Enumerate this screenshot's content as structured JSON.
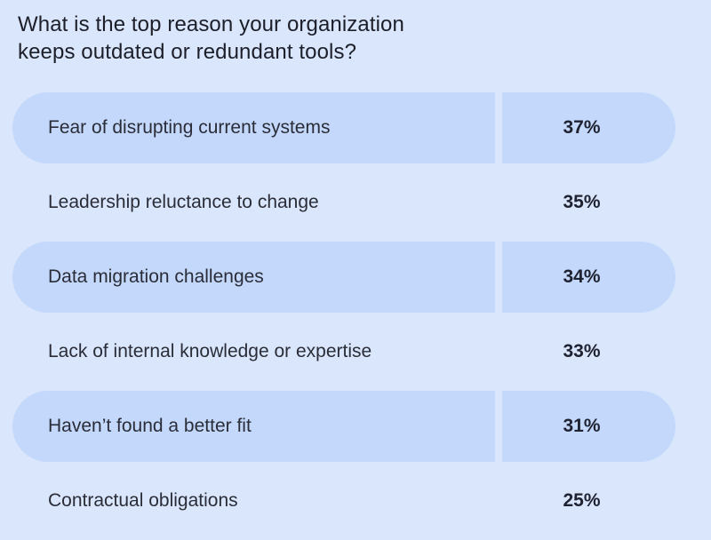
{
  "chart_data": {
    "type": "table",
    "title": "What is the top reason your organization keeps outdated or redundant tools?",
    "title_lines": [
      "What is the top reason your organization",
      "keeps outdated or redundant tools?"
    ],
    "categories": [
      "Fear of disrupting current systems",
      "Leadership reluctance to change",
      "Data migration challenges",
      "Lack of internal knowledge or expertise",
      "Haven’t found a better fit",
      "Contractual obligations"
    ],
    "values": [
      37,
      35,
      34,
      33,
      31,
      25
    ],
    "value_labels": [
      "37%",
      "35%",
      "34%",
      "33%",
      "31%",
      "25%"
    ],
    "unit": "%",
    "colors": {
      "background": "#d9e6fb",
      "row_shade": "#c3d8fb",
      "text": "#1f2230"
    }
  }
}
